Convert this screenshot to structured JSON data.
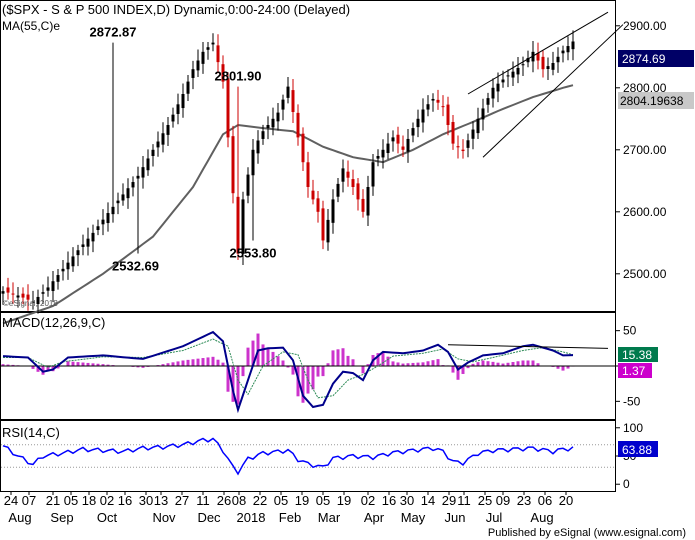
{
  "header": {
    "title": "($SPX - S & P 500 INDEX,D) Dynamic,0:00-24:00 (Delayed)",
    "ma_label": "MA(55,C)e",
    "watermark": "©eSignal, 2018"
  },
  "footer": {
    "text": "Published by eSignal (www.esignal.com)"
  },
  "colors": {
    "up": "#000000",
    "down": "#cc0000",
    "ma": "#606060",
    "macd": "#00008b",
    "signal": "#2e8b57",
    "hist": "#cc33cc",
    "rsi": "#0000ff",
    "trend": "#000000",
    "badge_price": "#000066",
    "badge_ma": "#c8c8c8",
    "badge_macd": "#007a4d",
    "badge_hist": "#cc00cc",
    "badge_rsi": "#0000cc"
  },
  "chart_data": [
    {
      "type": "line",
      "subtype": "candlestick",
      "title": "$SPX - S & P 500 INDEX, Daily",
      "ylim": [
        2440,
        2940
      ],
      "y_ticks": [
        2500,
        2600,
        2700,
        2800,
        2900
      ],
      "y_tick_labels": [
        "2500.00",
        "2600.00",
        "2700.00",
        "2800.00",
        "2900.00"
      ],
      "grid": false,
      "last_price_label": "2874.69",
      "ma_value_label": "2804.19638",
      "annotations": [
        {
          "text": "2872.87",
          "x": 22,
          "y": 2872.87
        },
        {
          "text": "2801.90",
          "x": 47,
          "y": 2801.9
        },
        {
          "text": "2532.69",
          "x": 26.5,
          "y": 2532.69
        },
        {
          "text": "2553.80",
          "x": 50,
          "y": 2553.8
        }
      ],
      "series": [
        {
          "name": "Price",
          "anchors": [
            [
              0,
              2472
            ],
            [
              3,
              2465
            ],
            [
              6,
              2455
            ],
            [
              9,
              2478
            ],
            [
              12,
              2508
            ],
            [
              15,
              2538
            ],
            [
              18,
              2566
            ],
            [
              21,
              2598
            ],
            [
              24,
              2628
            ],
            [
              27,
              2658
            ],
            [
              30,
              2700
            ],
            [
              33,
              2740
            ],
            [
              36,
              2790
            ],
            [
              38,
              2830
            ],
            [
              40,
              2858
            ],
            [
              42,
              2872.87
            ],
            [
              44,
              2810
            ],
            [
              46,
              2630
            ],
            [
              47,
              2532.69
            ],
            [
              48,
              2620
            ],
            [
              50,
              2700
            ],
            [
              52,
              2730
            ],
            [
              55,
              2760
            ],
            [
              57,
              2801.9
            ],
            [
              59,
              2720
            ],
            [
              61,
              2640
            ],
            [
              63,
              2600
            ],
            [
              64,
              2553.8
            ],
            [
              66,
              2620
            ],
            [
              68,
              2670
            ],
            [
              70,
              2640
            ],
            [
              72,
              2600
            ],
            [
              74,
              2680
            ],
            [
              76,
              2700
            ],
            [
              78,
              2720
            ],
            [
              80,
              2700
            ],
            [
              82,
              2735
            ],
            [
              84,
              2765
            ],
            [
              86,
              2782
            ],
            [
              88,
              2770
            ],
            [
              90,
              2710
            ],
            [
              92,
              2698
            ],
            [
              95,
              2750
            ],
            [
              98,
              2800
            ],
            [
              101,
              2820
            ],
            [
              104,
              2838
            ],
            [
              106,
              2858
            ],
            [
              108,
              2830
            ],
            [
              110,
              2840
            ],
            [
              112,
              2860
            ],
            [
              114,
              2874.69
            ]
          ]
        },
        {
          "name": "MA(55,C)e",
          "anchors": [
            [
              0,
              2420
            ],
            [
              10,
              2448
            ],
            [
              20,
              2500
            ],
            [
              30,
              2560
            ],
            [
              38,
              2640
            ],
            [
              44,
              2725
            ],
            [
              47,
              2740
            ],
            [
              52,
              2735
            ],
            [
              58,
              2730
            ],
            [
              64,
              2705
            ],
            [
              70,
              2688
            ],
            [
              76,
              2680
            ],
            [
              82,
              2700
            ],
            [
              88,
              2725
            ],
            [
              94,
              2745
            ],
            [
              100,
              2766
            ],
            [
              106,
              2785
            ],
            [
              112,
              2800
            ],
            [
              114,
              2804.2
            ]
          ]
        }
      ],
      "trendlines": [
        {
          "from": [
            93,
            2790
          ],
          "to": [
            121,
            2922
          ]
        },
        {
          "from": [
            96,
            2688
          ],
          "to": [
            124,
            2902
          ]
        }
      ]
    },
    {
      "type": "line",
      "title": "MACD(12,26,9,C)",
      "ylim": [
        -75,
        75
      ],
      "y_ticks": [
        50,
        0,
        -50
      ],
      "y_tick_labels": [
        "50",
        "0",
        "-50"
      ],
      "macd_value_label": "15.38",
      "hist_value_label": "1.37",
      "series": [
        {
          "name": "MACD",
          "anchors": [
            [
              0,
              14
            ],
            [
              5,
              12
            ],
            [
              8,
              -8
            ],
            [
              10,
              -5
            ],
            [
              13,
              12
            ],
            [
              20,
              15
            ],
            [
              28,
              10
            ],
            [
              36,
              28
            ],
            [
              42,
              48
            ],
            [
              44,
              35
            ],
            [
              46,
              -35
            ],
            [
              47,
              -62
            ],
            [
              49,
              -20
            ],
            [
              51,
              22
            ],
            [
              53,
              25
            ],
            [
              56,
              26
            ],
            [
              58,
              8
            ],
            [
              60,
              -42
            ],
            [
              62,
              -58
            ],
            [
              64,
              -55
            ],
            [
              66,
              -25
            ],
            [
              68,
              -8
            ],
            [
              70,
              -10
            ],
            [
              72,
              -20
            ],
            [
              74,
              8
            ],
            [
              76,
              20
            ],
            [
              80,
              18
            ],
            [
              84,
              22
            ],
            [
              87,
              30
            ],
            [
              89,
              20
            ],
            [
              91,
              -5
            ],
            [
              93,
              5
            ],
            [
              96,
              15
            ],
            [
              100,
              18
            ],
            [
              104,
              28
            ],
            [
              106,
              30
            ],
            [
              110,
              22
            ],
            [
              112,
              15
            ],
            [
              114,
              15.4
            ]
          ]
        },
        {
          "name": "Signal",
          "anchors": [
            [
              0,
              12
            ],
            [
              5,
              12
            ],
            [
              9,
              -2
            ],
            [
              12,
              6
            ],
            [
              20,
              13
            ],
            [
              28,
              12
            ],
            [
              36,
              22
            ],
            [
              42,
              38
            ],
            [
              45,
              28
            ],
            [
              47,
              -20
            ],
            [
              49,
              -40
            ],
            [
              52,
              0
            ],
            [
              56,
              20
            ],
            [
              59,
              16
            ],
            [
              61,
              -20
            ],
            [
              63,
              -45
            ],
            [
              66,
              -42
            ],
            [
              69,
              -20
            ],
            [
              72,
              -12
            ],
            [
              75,
              0
            ],
            [
              78,
              14
            ],
            [
              84,
              18
            ],
            [
              88,
              24
            ],
            [
              91,
              10
            ],
            [
              94,
              6
            ],
            [
              98,
              12
            ],
            [
              104,
              22
            ],
            [
              108,
              26
            ],
            [
              112,
              20
            ],
            [
              114,
              16
            ]
          ]
        }
      ],
      "trendlines": [
        {
          "from": [
            89,
            30
          ],
          "to": [
            121,
            25
          ]
        }
      ]
    },
    {
      "type": "line",
      "title": "RSI(14,C)",
      "ylim": [
        -12,
        112
      ],
      "y_ticks": [
        100,
        50,
        0
      ],
      "y_tick_labels": [
        "100",
        "50",
        "0"
      ],
      "guide_levels": [
        70,
        30
      ],
      "rsi_value_label": "63.88",
      "series": [
        {
          "name": "RSI",
          "anchors": [
            [
              0,
              68
            ],
            [
              3,
              50
            ],
            [
              6,
              35
            ],
            [
              8,
              50
            ],
            [
              12,
              55
            ],
            [
              16,
              62
            ],
            [
              20,
              60
            ],
            [
              24,
              58
            ],
            [
              28,
              64
            ],
            [
              32,
              66
            ],
            [
              36,
              70
            ],
            [
              40,
              78
            ],
            [
              42,
              80
            ],
            [
              44,
              60
            ],
            [
              46,
              30
            ],
            [
              47,
              22
            ],
            [
              49,
              45
            ],
            [
              52,
              55
            ],
            [
              55,
              58
            ],
            [
              57,
              60
            ],
            [
              59,
              44
            ],
            [
              61,
              36
            ],
            [
              63,
              32
            ],
            [
              64,
              30
            ],
            [
              66,
              46
            ],
            [
              70,
              50
            ],
            [
              74,
              48
            ],
            [
              78,
              56
            ],
            [
              82,
              60
            ],
            [
              86,
              64
            ],
            [
              88,
              58
            ],
            [
              90,
              40
            ],
            [
              92,
              38
            ],
            [
              95,
              55
            ],
            [
              98,
              60
            ],
            [
              102,
              62
            ],
            [
              106,
              64
            ],
            [
              110,
              58
            ],
            [
              112,
              62
            ],
            [
              114,
              63.9
            ]
          ]
        }
      ]
    }
  ],
  "x_axis": {
    "day_ticks": [
      {
        "label": "24",
        "x": 1
      },
      {
        "label": "07",
        "x": 7
      },
      {
        "label": "21",
        "x": 15
      },
      {
        "label": "05",
        "x": 21
      },
      {
        "label": "18",
        "x": 27
      },
      {
        "label": "02",
        "x": 33
      },
      {
        "label": "16",
        "x": 39
      },
      {
        "label": "30",
        "x": 46
      },
      {
        "label": "13",
        "x": 51
      },
      {
        "label": "27",
        "x": 58
      },
      {
        "label": "11",
        "x": 65
      },
      {
        "label": "26",
        "x": 72
      },
      {
        "label": "08",
        "x": 77
      },
      {
        "label": "22",
        "x": 84
      },
      {
        "label": "05",
        "x": 91
      },
      {
        "label": "19",
        "x": 98
      },
      {
        "label": "05",
        "x": 105
      },
      {
        "label": "19",
        "x": 112
      },
      {
        "label": "02",
        "x": 120
      },
      {
        "label": "16",
        "x": 127
      },
      {
        "label": "30",
        "x": 133
      },
      {
        "label": "14",
        "x": 140
      },
      {
        "label": "29",
        "x": 147
      },
      {
        "label": "11",
        "x": 152
      },
      {
        "label": "25",
        "x": 159
      },
      {
        "label": "09",
        "x": 165
      },
      {
        "label": "23",
        "x": 172
      },
      {
        "label": "06",
        "x": 179
      },
      {
        "label": "20",
        "x": 186
      }
    ],
    "month_ticks": [
      {
        "label": "Aug",
        "x": 4
      },
      {
        "label": "Sep",
        "x": 18
      },
      {
        "label": "Oct",
        "x": 33
      },
      {
        "label": "Nov",
        "x": 52
      },
      {
        "label": "Dec",
        "x": 67
      },
      {
        "label": "2018",
        "x": 81
      },
      {
        "label": "Feb",
        "x": 94
      },
      {
        "label": "Mar",
        "x": 107
      },
      {
        "label": "Apr",
        "x": 122
      },
      {
        "label": "May",
        "x": 135
      },
      {
        "label": "Jun",
        "x": 149
      },
      {
        "label": "Jul",
        "x": 162
      },
      {
        "label": "Aug",
        "x": 178
      }
    ]
  }
}
